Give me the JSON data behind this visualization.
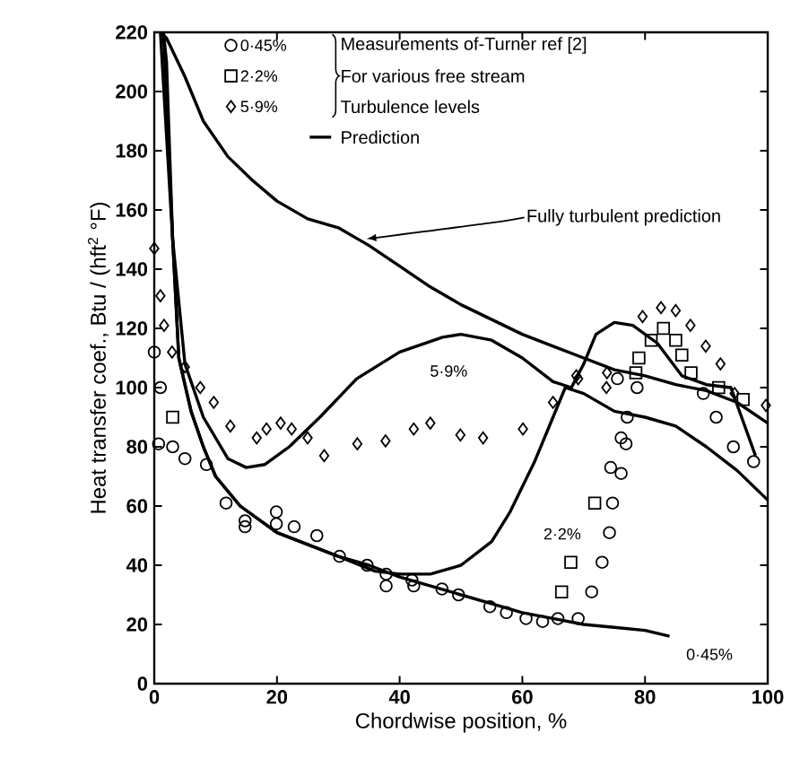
{
  "chart_data": {
    "type": "scatter",
    "xlabel": "Chordwise position, %",
    "ylabel": "Heat transfer coef., Btu / (hft$^{2}$ °F)",
    "xlim": [
      0,
      100
    ],
    "ylim": [
      0,
      220
    ],
    "xticks": [
      0,
      20,
      40,
      60,
      80,
      100
    ],
    "yticks": [
      0,
      20,
      40,
      60,
      80,
      100,
      120,
      140,
      160,
      180,
      200,
      220
    ],
    "grid": false,
    "legend": "top left",
    "annotations": [
      "Measurements of-Turner ref [2]",
      "For various free stream",
      "Turbulence levels",
      {
        "text": "Fully turbulent prediction",
        "x": 34,
        "y": 149
      },
      "5·9%",
      "2·2%",
      "0·45%"
    ],
    "series": [
      {
        "name": "0·45%",
        "marker": "circle",
        "color": "#000000",
        "x": [
          0,
          1,
          0.7,
          3,
          5,
          8.5,
          11.7,
          14.8,
          14.8,
          19.9,
          19.9,
          22.8,
          26.5,
          30.2,
          34.7,
          37.8,
          37.8,
          42,
          42.3,
          46.9,
          49.6,
          54.7,
          57.4,
          60.6,
          63.3,
          65.8,
          69.1,
          71.3,
          73,
          74.2,
          74.7,
          74.4,
          76.1,
          76.1,
          76.9,
          77.1,
          78.7,
          75.5,
          89.5,
          91.6,
          94.4,
          97.7
        ],
        "values": [
          112,
          100,
          81,
          80,
          76,
          74,
          61,
          55,
          53,
          58,
          54,
          53,
          50,
          43,
          40,
          37,
          33,
          35,
          33,
          32,
          30,
          26,
          24,
          22,
          21,
          22,
          22,
          31,
          41,
          51,
          61,
          73,
          71,
          83,
          81,
          90,
          100,
          103,
          98,
          90,
          80,
          75
        ]
      },
      {
        "name": "2·2%",
        "marker": "square",
        "color": "#000000",
        "x": [
          3,
          66.4,
          67.9,
          71.8,
          78.5,
          79,
          81,
          83,
          85,
          86,
          87.5,
          92,
          96
        ],
        "values": [
          90,
          31,
          41,
          61,
          105,
          110,
          116,
          120,
          116,
          111,
          105,
          100,
          96
        ]
      },
      {
        "name": "5·9%",
        "marker": "diamond",
        "color": "#000000",
        "x": [
          0,
          1,
          1.6,
          2.9,
          5,
          7.5,
          9.7,
          12.4,
          16.7,
          18.3,
          20.6,
          22.4,
          25,
          27.7,
          33.1,
          37.7,
          42.3,
          45,
          49.9,
          53.6,
          60.1,
          65,
          68.8,
          69.1,
          73.7,
          73.8,
          79.6,
          82.6,
          85,
          87.4,
          89.9,
          92.3,
          94.6,
          99.7
        ],
        "values": [
          147,
          131,
          121,
          112,
          107,
          100,
          95,
          87,
          83,
          86,
          88,
          86,
          83,
          77,
          81,
          82,
          86,
          88,
          84,
          83,
          86,
          95,
          104,
          103,
          100,
          105,
          124,
          127,
          126,
          121,
          114,
          108,
          98,
          94
        ]
      },
      {
        "name": "Prediction",
        "type": "line",
        "marker": "none",
        "line_style": "solid",
        "color": "#000000",
        "x": [
          1,
          2,
          5,
          8,
          12,
          16,
          20,
          25,
          30,
          35,
          40,
          45,
          50,
          55,
          60,
          65,
          70,
          75,
          80,
          85,
          90,
          95,
          100
        ],
        "values": [
          220,
          218,
          205,
          190,
          178,
          170,
          163,
          157,
          154,
          148,
          141,
          134,
          128,
          123,
          118,
          114,
          110,
          106,
          104,
          101,
          99,
          95,
          88
        ]
      },
      {
        "type": "line",
        "marker": "none",
        "line_style": "solid",
        "color": "#000000",
        "x": [
          1,
          3,
          5,
          8,
          12,
          15,
          18,
          22,
          27,
          33,
          40,
          47,
          50,
          55,
          60,
          65,
          68,
          70,
          72,
          75,
          78,
          82,
          86,
          90,
          94,
          98
        ],
        "values": [
          220,
          150,
          108,
          90,
          76,
          73,
          74,
          80,
          90,
          103,
          112,
          117,
          118,
          116,
          110,
          102,
          100,
          108,
          118,
          122,
          121,
          115,
          104,
          101,
          100,
          77
        ]
      },
      {
        "type": "line",
        "marker": "none",
        "line_style": "solid",
        "color": "#000000",
        "x": [
          1.5,
          3,
          4,
          6,
          8,
          10,
          14,
          20,
          25,
          30,
          36,
          40,
          45,
          50,
          55,
          58,
          62,
          65,
          67,
          70,
          75,
          80,
          85,
          90,
          95,
          100
        ],
        "values": [
          220,
          150,
          110,
          92,
          80,
          70,
          60,
          51,
          47,
          43,
          38,
          37,
          37,
          40,
          48,
          58,
          75,
          90,
          100,
          98,
          92,
          90,
          87,
          80,
          72,
          62
        ]
      },
      {
        "type": "line",
        "marker": "none",
        "line_style": "solid",
        "color": "#000000",
        "x": [
          1.5,
          2,
          3,
          4,
          6,
          8,
          10,
          14,
          20,
          25,
          30,
          35,
          40,
          45,
          50,
          55,
          60,
          65,
          70,
          75,
          80,
          84
        ],
        "values": [
          220,
          210,
          150,
          110,
          92,
          80,
          70,
          60,
          51,
          47,
          43,
          40,
          36,
          33,
          30,
          27,
          24,
          22,
          20,
          19,
          18,
          16
        ]
      }
    ]
  }
}
